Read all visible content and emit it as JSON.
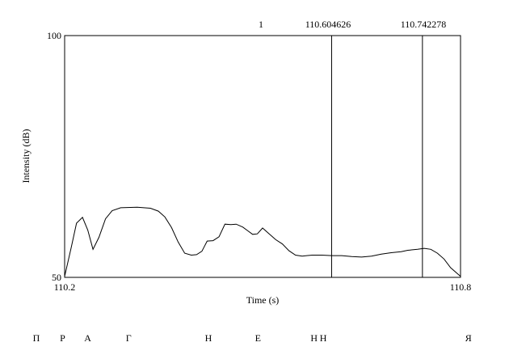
{
  "chart_data": {
    "type": "line",
    "xlabel": "Time (s)",
    "ylabel": "Intensity (dB)",
    "xlim": [
      110.2,
      110.8
    ],
    "ylim": [
      50,
      100
    ],
    "x_tick_labels": [
      "110.2",
      "110.8"
    ],
    "y_tick_labels": [
      "100",
      "50"
    ],
    "top_labels": [
      "1",
      "110.604626",
      "110.742278"
    ],
    "cursor_lines": [
      110.604626,
      110.742278
    ],
    "series": [
      {
        "points": [
          [
            110.2,
            50.2
          ],
          [
            110.21,
            56.2
          ],
          [
            110.218,
            61.2
          ],
          [
            110.227,
            62.4
          ],
          [
            110.235,
            59.8
          ],
          [
            110.243,
            55.8
          ],
          [
            110.252,
            58.3
          ],
          [
            110.262,
            62.1
          ],
          [
            110.272,
            63.8
          ],
          [
            110.285,
            64.4
          ],
          [
            110.31,
            64.5
          ],
          [
            110.33,
            64.3
          ],
          [
            110.342,
            63.7
          ],
          [
            110.352,
            62.5
          ],
          [
            110.362,
            60.3
          ],
          [
            110.372,
            57.3
          ],
          [
            110.382,
            55.0
          ],
          [
            110.392,
            54.6
          ],
          [
            110.4,
            54.7
          ],
          [
            110.408,
            55.4
          ],
          [
            110.416,
            57.5
          ],
          [
            110.425,
            57.6
          ],
          [
            110.434,
            58.4
          ],
          [
            110.443,
            61.0
          ],
          [
            110.452,
            60.9
          ],
          [
            110.46,
            61.0
          ],
          [
            110.47,
            60.4
          ],
          [
            110.478,
            59.6
          ],
          [
            110.485,
            58.9
          ],
          [
            110.492,
            59.0
          ],
          [
            110.5,
            60.2
          ],
          [
            110.51,
            59.0
          ],
          [
            110.52,
            57.8
          ],
          [
            110.53,
            56.9
          ],
          [
            110.54,
            55.5
          ],
          [
            110.55,
            54.6
          ],
          [
            110.56,
            54.4
          ],
          [
            110.575,
            54.6
          ],
          [
            110.59,
            54.6
          ],
          [
            110.605,
            54.5
          ],
          [
            110.62,
            54.5
          ],
          [
            110.635,
            54.3
          ],
          [
            110.65,
            54.2
          ],
          [
            110.665,
            54.4
          ],
          [
            110.68,
            54.8
          ],
          [
            110.695,
            55.1
          ],
          [
            110.71,
            55.3
          ],
          [
            110.72,
            55.6
          ],
          [
            110.735,
            55.8
          ],
          [
            110.745,
            56.0
          ],
          [
            110.755,
            55.8
          ],
          [
            110.765,
            55.0
          ],
          [
            110.775,
            53.8
          ],
          [
            110.785,
            52.0
          ],
          [
            110.8,
            50.2
          ]
        ]
      }
    ]
  },
  "segment_labels": [
    {
      "text": "П",
      "time": 110.157
    },
    {
      "text": "Р",
      "time": 110.197
    },
    {
      "text": "А",
      "time": 110.235
    },
    {
      "text": "Г",
      "time": 110.297
    },
    {
      "text": "Н",
      "time": 110.418
    },
    {
      "text": "Е",
      "time": 110.493
    },
    {
      "text": "Н",
      "time": 110.578
    },
    {
      "text": "Н",
      "time": 110.592
    },
    {
      "text": "Я",
      "time": 110.812
    }
  ]
}
